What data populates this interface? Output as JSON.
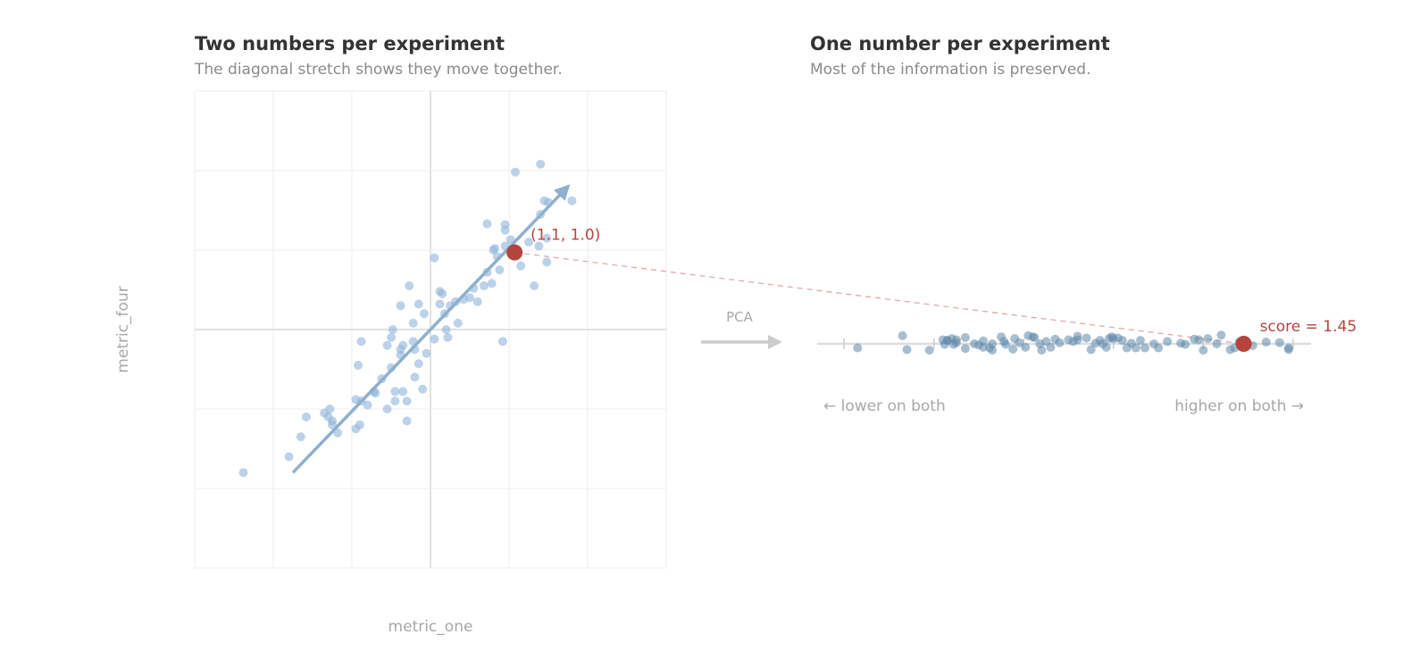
{
  "left_panel": {
    "title": "Two numbers per experiment",
    "subtitle": "The diagonal stretch shows they move together."
  },
  "right_panel": {
    "title": "One number per experiment",
    "subtitle": "Most of the information is preserved."
  },
  "arrow_label": "PCA",
  "colors": {
    "points": "#8fb4dc",
    "points_projected": "#5f88aa",
    "highlight": "#b5443d",
    "arrow": "#8eb0cc",
    "grid": "#eeeeee",
    "axis": "#d9d9d9",
    "muted_text": "#a8a8a8"
  },
  "chart_data": [
    {
      "type": "scatter",
      "title": "Two numbers per experiment",
      "subtitle": "The diagonal stretch shows they move together.",
      "xlabel": "metric_one",
      "ylabel": "metric_four",
      "xlim": [
        -3,
        3
      ],
      "ylim": [
        -3,
        3
      ],
      "grid": true,
      "principal_axis": {
        "from": [
          -1.75,
          -1.8
        ],
        "to": [
          1.75,
          1.8
        ]
      },
      "highlight": {
        "x": 1.07,
        "y": 0.97,
        "label": "(1.1, 1.0)"
      },
      "points": [
        [
          -2.38,
          -1.8
        ],
        [
          -1.8,
          -1.6
        ],
        [
          -1.65,
          -1.35
        ],
        [
          -1.58,
          -1.1
        ],
        [
          -1.3,
          -1.1
        ],
        [
          -1.25,
          -1.15
        ],
        [
          -1.18,
          -1.3
        ],
        [
          -1.25,
          -1.2
        ],
        [
          -1.35,
          -1.05
        ],
        [
          -1.28,
          -1.0
        ],
        [
          -0.95,
          -1.25
        ],
        [
          -0.9,
          -1.2
        ],
        [
          -0.88,
          -0.9
        ],
        [
          -0.95,
          -0.88
        ],
        [
          -0.8,
          -0.95
        ],
        [
          -0.7,
          -0.8
        ],
        [
          -0.55,
          -1.0
        ],
        [
          -0.45,
          -0.9
        ],
        [
          -0.72,
          -0.78
        ],
        [
          -0.62,
          -0.62
        ],
        [
          -0.5,
          -0.48
        ],
        [
          -0.3,
          -0.9
        ],
        [
          -0.35,
          -0.78
        ],
        [
          -0.45,
          -0.78
        ],
        [
          -0.3,
          -1.15
        ],
        [
          -0.2,
          -0.6
        ],
        [
          -0.1,
          -0.75
        ],
        [
          -0.15,
          -0.43
        ],
        [
          -0.05,
          -0.3
        ],
        [
          -0.35,
          -0.2
        ],
        [
          -0.92,
          -0.45
        ],
        [
          -0.88,
          -0.15
        ],
        [
          -0.55,
          -0.2
        ],
        [
          -0.5,
          -0.1
        ],
        [
          -0.38,
          -0.32
        ],
        [
          -0.38,
          -0.25
        ],
        [
          -0.2,
          -0.25
        ],
        [
          -0.22,
          -0.15
        ],
        [
          -0.22,
          0.08
        ],
        [
          -0.48,
          0.0
        ],
        [
          -0.38,
          0.3
        ],
        [
          -0.27,
          0.55
        ],
        [
          -0.15,
          0.32
        ],
        [
          -0.08,
          0.2
        ],
        [
          0.05,
          -0.12
        ],
        [
          0.2,
          0.0
        ],
        [
          0.22,
          -0.1
        ],
        [
          0.35,
          0.08
        ],
        [
          0.18,
          0.2
        ],
        [
          0.25,
          0.3
        ],
        [
          0.32,
          0.35
        ],
        [
          0.42,
          0.38
        ],
        [
          0.12,
          0.32
        ],
        [
          0.15,
          0.45
        ],
        [
          0.12,
          0.48
        ],
        [
          0.5,
          0.4
        ],
        [
          0.6,
          0.35
        ],
        [
          0.55,
          0.52
        ],
        [
          0.68,
          0.55
        ],
        [
          0.72,
          0.72
        ],
        [
          0.78,
          0.58
        ],
        [
          0.88,
          0.75
        ],
        [
          0.85,
          0.92
        ],
        [
          0.95,
          1.05
        ],
        [
          0.8,
          1.0
        ],
        [
          1.02,
          1.13
        ],
        [
          0.95,
          1.25
        ],
        [
          0.95,
          1.32
        ],
        [
          0.72,
          1.33
        ],
        [
          0.82,
          1.02
        ],
        [
          1.25,
          1.1
        ],
        [
          1.38,
          1.05
        ],
        [
          1.32,
          0.55
        ],
        [
          1.48,
          0.85
        ],
        [
          1.15,
          0.8
        ],
        [
          1.4,
          1.45
        ],
        [
          1.5,
          1.6
        ],
        [
          1.45,
          1.62
        ],
        [
          1.8,
          1.62
        ],
        [
          1.08,
          1.98
        ],
        [
          1.4,
          2.08
        ],
        [
          0.05,
          0.9
        ],
        [
          0.92,
          -0.15
        ],
        [
          1.48,
          1.15
        ]
      ]
    },
    {
      "type": "scatter",
      "title": "One number per experiment",
      "subtitle": "Most of the information is preserved.",
      "xlabel_left": "← lower on both",
      "xlabel_right": "higher on both →",
      "xlim": [
        -3.3,
        2.2
      ],
      "grid": false,
      "highlight": {
        "x": 1.45,
        "label": "score = 1.45"
      },
      "points": [
        [
          -2.85,
          -0.35
        ],
        [
          -2.35,
          0.7
        ],
        [
          -2.3,
          -0.5
        ],
        [
          -2.05,
          -0.55
        ],
        [
          -1.9,
          0.35
        ],
        [
          -1.85,
          0.3
        ],
        [
          -1.8,
          0.45
        ],
        [
          -1.75,
          0.35
        ],
        [
          -1.88,
          -0.05
        ],
        [
          -1.78,
          -0.05
        ],
        [
          -1.75,
          0.1
        ],
        [
          -1.85,
          0.3
        ],
        [
          -1.65,
          0.55
        ],
        [
          -1.65,
          -0.4
        ],
        [
          -1.55,
          0.0
        ],
        [
          -1.5,
          -0.1
        ],
        [
          -1.45,
          0.25
        ],
        [
          -1.45,
          -0.3
        ],
        [
          -1.38,
          -0.35
        ],
        [
          -1.35,
          -0.55
        ],
        [
          -1.35,
          0.0
        ],
        [
          -1.25,
          0.6
        ],
        [
          -1.22,
          0.2
        ],
        [
          -1.2,
          -0.05
        ],
        [
          -1.12,
          -0.45
        ],
        [
          -1.1,
          0.45
        ],
        [
          -1.05,
          0.1
        ],
        [
          -0.98,
          -0.3
        ],
        [
          -0.95,
          0.7
        ],
        [
          -0.9,
          0.6
        ],
        [
          -0.88,
          0.55
        ],
        [
          -0.82,
          0.0
        ],
        [
          -0.8,
          -0.55
        ],
        [
          -0.75,
          0.2
        ],
        [
          -0.7,
          -0.3
        ],
        [
          -0.65,
          0.4
        ],
        [
          -0.6,
          0.1
        ],
        [
          -0.5,
          0.35
        ],
        [
          -0.45,
          0.2
        ],
        [
          -0.4,
          0.35
        ],
        [
          -0.4,
          0.65
        ],
        [
          -0.3,
          0.5
        ],
        [
          -0.25,
          -0.5
        ],
        [
          -0.2,
          0.05
        ],
        [
          -0.15,
          0.3
        ],
        [
          -0.12,
          0.0
        ],
        [
          -0.08,
          -0.3
        ],
        [
          -0.05,
          0.45
        ],
        [
          -0.02,
          0.6
        ],
        [
          0.0,
          0.45
        ],
        [
          0.05,
          0.5
        ],
        [
          0.1,
          0.3
        ],
        [
          0.15,
          -0.35
        ],
        [
          0.2,
          0.05
        ],
        [
          0.25,
          -0.35
        ],
        [
          0.3,
          0.3
        ],
        [
          0.35,
          -0.35
        ],
        [
          0.45,
          0.0
        ],
        [
          0.5,
          -0.35
        ],
        [
          0.6,
          0.2
        ],
        [
          0.75,
          0.05
        ],
        [
          0.8,
          -0.05
        ],
        [
          0.9,
          0.4
        ],
        [
          0.95,
          0.35
        ],
        [
          1.0,
          -0.55
        ],
        [
          1.05,
          0.45
        ],
        [
          1.15,
          0.0
        ],
        [
          1.2,
          0.75
        ],
        [
          1.3,
          -0.5
        ],
        [
          1.35,
          -0.35
        ],
        [
          1.4,
          0.15
        ],
        [
          1.55,
          -0.15
        ],
        [
          1.7,
          0.15
        ],
        [
          1.85,
          0.1
        ],
        [
          1.95,
          -0.35
        ],
        [
          1.95,
          -0.5
        ]
      ]
    }
  ]
}
